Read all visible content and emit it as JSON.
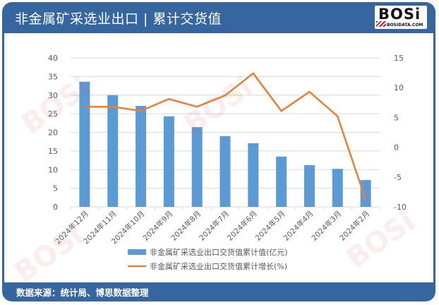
{
  "header": {
    "title": "非金属矿采选业出口 | 累计交货值",
    "logo_text": "BOSi",
    "logo_subtext": "BOSIDATA.COM"
  },
  "footer": {
    "source": "数据来源：统计局、博思数据整理"
  },
  "colors": {
    "frame": "#3566a0",
    "bar": "#5b9bd5",
    "line": "#ed7d31",
    "grid": "#d9d9d9",
    "axis_text": "#595959"
  },
  "legend": {
    "bar_label": "非金属矿采选业出口交货值累计值(亿元)",
    "line_label": "非金属矿采选业出口交货值累计增长(%)"
  },
  "chart_data": {
    "type": "bar+line",
    "title": "非金属矿采选业出口 | 累计交货值",
    "categories": [
      "2024年12月",
      "2024年11月",
      "2024年10月",
      "2024年9月",
      "2024年8月",
      "2024年7月",
      "2024年6月",
      "2024年5月",
      "2024年4月",
      "2024年3月",
      "2024年2月"
    ],
    "series": [
      {
        "name": "非金属矿采选业出口交货值累计值(亿元)",
        "type": "bar",
        "axis": "left",
        "values": [
          33.6,
          30.0,
          27.1,
          24.3,
          21.4,
          19.0,
          17.1,
          13.5,
          11.2,
          10.2,
          7.2
        ]
      },
      {
        "name": "非金属矿采选业出口交货值累计增长(%)",
        "type": "line",
        "axis": "right",
        "values": [
          6.8,
          6.8,
          6.1,
          8.1,
          6.8,
          8.7,
          12.4,
          6.1,
          9.3,
          5.2,
          -8.8
        ]
      }
    ],
    "left_axis": {
      "ylim": [
        0,
        40
      ],
      "ticks": [
        0,
        5,
        10,
        15,
        20,
        25,
        30,
        35,
        40
      ]
    },
    "right_axis": {
      "ylim": [
        -10,
        15
      ],
      "ticks": [
        -10,
        -5,
        0,
        5,
        10,
        15
      ]
    },
    "grid": true,
    "legend_position": "bottom"
  }
}
